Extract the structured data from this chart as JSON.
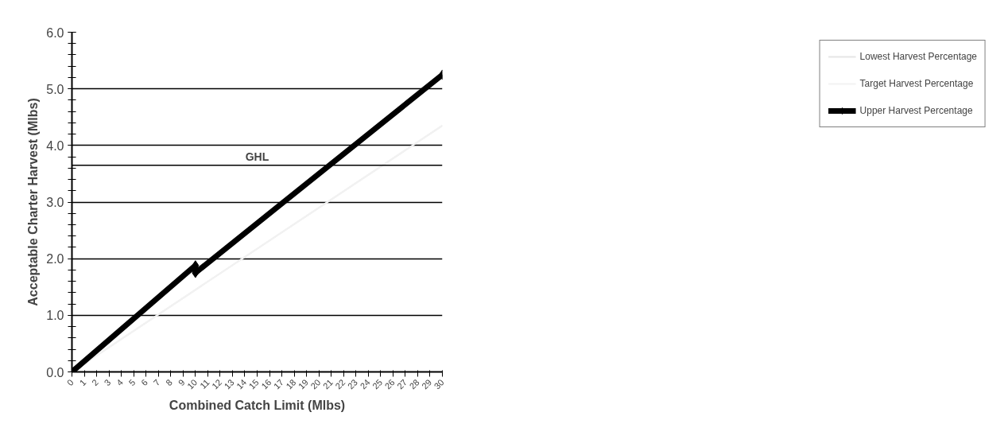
{
  "chart_data": {
    "type": "line",
    "xlabel": "Combined Catch Limit (Mlbs)",
    "ylabel": "Acceptable Charter Harvest (Mlbs)",
    "xlim": [
      0,
      30
    ],
    "xticks": [
      0,
      1,
      2,
      3,
      4,
      5,
      6,
      7,
      8,
      9,
      10,
      11,
      12,
      13,
      14,
      15,
      16,
      17,
      18,
      19,
      20,
      21,
      22,
      23,
      24,
      25,
      26,
      27,
      28,
      29,
      30
    ],
    "ylim": [
      0,
      6
    ],
    "yticks": [
      {
        "value": 0,
        "label": "0.0"
      },
      {
        "value": 1,
        "label": "1.0"
      },
      {
        "value": 2,
        "label": "2.0"
      },
      {
        "value": 3,
        "label": "3.0"
      },
      {
        "value": 4,
        "label": "4.0"
      },
      {
        "value": 5,
        "label": "5.0"
      },
      {
        "value": 6,
        "label": "6.0"
      }
    ],
    "grid": "y",
    "legend": "right",
    "ref_lines": [
      {
        "axis": "y",
        "value": 3.65,
        "label": "GHL",
        "color": "#000000"
      }
    ],
    "series": [
      {
        "name": "Lowest Harvest Percentage",
        "color": "#e6e6e6",
        "x": [
          0,
          10,
          30
        ],
        "values": [
          0,
          1.45,
          4.35
        ],
        "marker": "none"
      },
      {
        "name": "Target Harvest Percentage",
        "color": "#f2f2f2",
        "x": [
          0,
          10,
          30
        ],
        "values": [
          0,
          1.45,
          4.35
        ],
        "marker": "none"
      },
      {
        "name": "Upper Harvest Percentage",
        "color": "#000000",
        "x": [
          0,
          10,
          10,
          30
        ],
        "values": [
          0,
          1.88,
          1.75,
          5.25
        ],
        "marker": "diamond"
      }
    ]
  }
}
